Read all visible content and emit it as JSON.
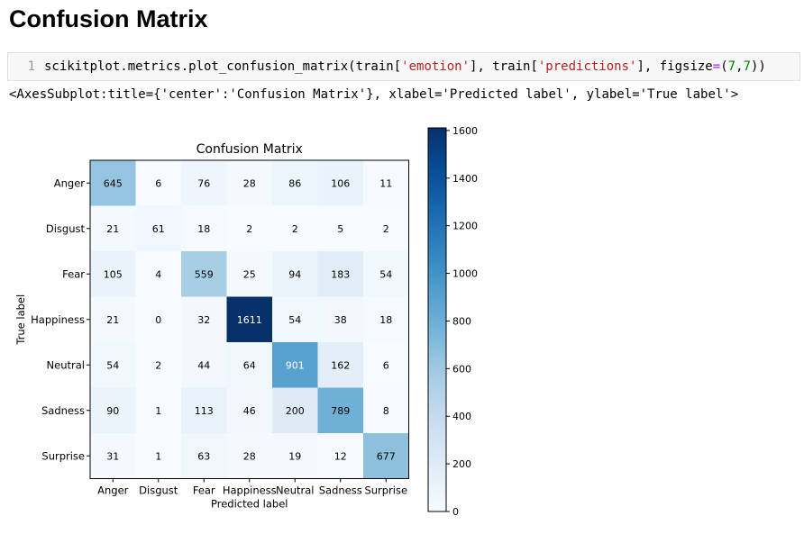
{
  "page": {
    "heading": "Confusion Matrix",
    "input_cell": {
      "line_number": "1",
      "code_segments": [
        {
          "text": "scikitplot.metrics.plot_confusion_matrix(train[",
          "kind": "plain"
        },
        {
          "text": "'emotion'",
          "kind": "str"
        },
        {
          "text": "], train[",
          "kind": "plain"
        },
        {
          "text": "'predictions'",
          "kind": "str"
        },
        {
          "text": "], figsize",
          "kind": "plain"
        },
        {
          "text": "=",
          "kind": "op"
        },
        {
          "text": "(",
          "kind": "plain"
        },
        {
          "text": "7",
          "kind": "num"
        },
        {
          "text": ",",
          "kind": "plain"
        },
        {
          "text": "7",
          "kind": "num"
        },
        {
          "text": "))",
          "kind": "plain"
        }
      ]
    },
    "output_text": "<AxesSubplot:title={'center':'Confusion Matrix'}, xlabel='Predicted label', ylabel='True label'>"
  },
  "chart_data": {
    "type": "heatmap",
    "title": "Confusion Matrix",
    "xlabel": "Predicted label",
    "ylabel": "True label",
    "x_labels": [
      "Anger",
      "Disgust",
      "Fear",
      "Happiness",
      "Neutral",
      "Sadness",
      "Surprise"
    ],
    "y_labels": [
      "Anger",
      "Disgust",
      "Fear",
      "Happiness",
      "Neutral",
      "Sadness",
      "Surprise"
    ],
    "values": [
      [
        645,
        6,
        76,
        28,
        86,
        106,
        11
      ],
      [
        21,
        61,
        18,
        2,
        2,
        5,
        2
      ],
      [
        105,
        4,
        559,
        25,
        94,
        183,
        54
      ],
      [
        21,
        0,
        32,
        1611,
        54,
        38,
        18
      ],
      [
        54,
        2,
        44,
        64,
        901,
        162,
        6
      ],
      [
        90,
        1,
        113,
        46,
        200,
        789,
        8
      ],
      [
        31,
        1,
        63,
        28,
        19,
        12,
        677
      ]
    ],
    "colormap": "Blues",
    "colorbar": {
      "min": 0,
      "max": 1611,
      "ticks": [
        0,
        200,
        400,
        600,
        800,
        1000,
        1200,
        1400,
        1600
      ]
    }
  }
}
